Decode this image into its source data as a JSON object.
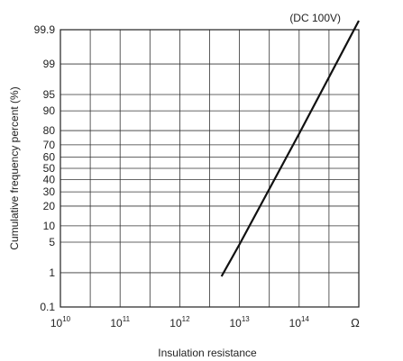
{
  "chart_data": {
    "type": "line",
    "annotation": "(DC 100V)",
    "xlabel": "Insulation resistance",
    "ylabel": "Cumulative frequency percent (%)",
    "x_scale": "log",
    "y_scale": "probability",
    "grid": true,
    "x_ticks": [
      {
        "base": "10",
        "exp": "10"
      },
      {
        "base": "10",
        "exp": "11"
      },
      {
        "base": "10",
        "exp": "12"
      },
      {
        "base": "10",
        "exp": "13"
      },
      {
        "base": "10",
        "exp": "14"
      }
    ],
    "x_unit": "Ω",
    "y_ticks": [
      "99.9",
      "99",
      "95",
      "90",
      "80",
      "70",
      "60",
      "50",
      "40",
      "30",
      "20",
      "10",
      "5",
      "1",
      "0.1"
    ],
    "series": [
      {
        "x": [
          "5e12",
          "1e13",
          "1e14",
          "1e15"
        ],
        "y": [
          0.8,
          4.5,
          78,
          99.95
        ]
      }
    ]
  }
}
